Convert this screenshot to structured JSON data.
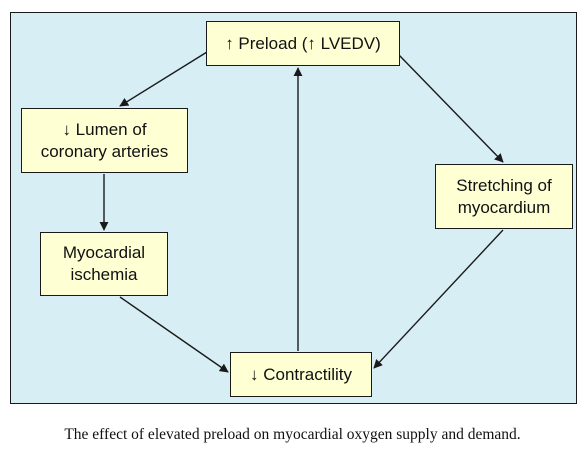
{
  "diagram": {
    "nodes": {
      "preload": "↑ Preload (↑ LVEDV)",
      "lumen": "↓ Lumen of\ncoronary arteries",
      "stretching": "Stretching of\nmyocardium",
      "ischemia": "Myocardial\nischemia",
      "contractility": "↓ Contractility"
    },
    "edges": [
      {
        "from": "preload",
        "to": "lumen"
      },
      {
        "from": "lumen",
        "to": "ischemia"
      },
      {
        "from": "ischemia",
        "to": "contractility"
      },
      {
        "from": "preload",
        "to": "stretching"
      },
      {
        "from": "stretching",
        "to": "contractility"
      },
      {
        "from": "contractility",
        "to": "preload"
      }
    ],
    "colors": {
      "background": "#d7eef4",
      "box_fill": "#ffffd4",
      "stroke": "#1a1a1a"
    }
  },
  "caption": "The effect of elevated preload on myocardial oxygen supply and demand."
}
